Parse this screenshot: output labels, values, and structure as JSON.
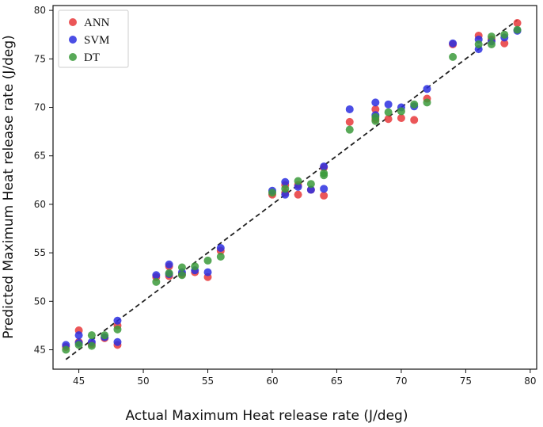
{
  "chart_data": {
    "type": "scatter",
    "xlabel": "Actual Maximum Heat release rate (J/deg)",
    "ylabel": "Predicted Maximum Heat release rate (J/deg)",
    "xlim": [
      43,
      80.5
    ],
    "ylim": [
      43,
      80.5
    ],
    "xticks": [
      45,
      50,
      55,
      60,
      65,
      70,
      75,
      80
    ],
    "yticks": [
      45,
      50,
      55,
      60,
      65,
      70,
      75,
      80
    ],
    "grid": false,
    "legend_position": "top-left",
    "reference_line": {
      "style": "dashed",
      "color": "#222222",
      "from": [
        44,
        44
      ],
      "to": [
        79,
        79
      ]
    },
    "series": [
      {
        "name": "ANN",
        "color": "#e8383b",
        "points": [
          [
            44,
            45.3
          ],
          [
            45,
            47.0
          ],
          [
            45,
            45.8
          ],
          [
            46,
            45.6
          ],
          [
            47,
            46.2
          ],
          [
            48,
            45.5
          ],
          [
            48,
            47.5
          ],
          [
            51,
            52.5
          ],
          [
            52,
            53.6
          ],
          [
            52,
            52.6
          ],
          [
            53,
            52.8
          ],
          [
            54,
            53.0
          ],
          [
            55,
            52.5
          ],
          [
            56,
            55.2
          ],
          [
            60,
            61.0
          ],
          [
            61,
            61.2
          ],
          [
            61,
            62.0
          ],
          [
            62,
            61.0
          ],
          [
            62,
            62.0
          ],
          [
            63,
            61.5
          ],
          [
            64,
            60.9
          ],
          [
            64,
            63.8
          ],
          [
            66,
            68.5
          ],
          [
            68,
            69.8
          ],
          [
            68,
            68.8
          ],
          [
            69,
            68.8
          ],
          [
            70,
            68.9
          ],
          [
            71,
            68.7
          ],
          [
            72,
            70.9
          ],
          [
            74,
            76.5
          ],
          [
            76,
            77.4
          ],
          [
            77,
            77.0
          ],
          [
            78,
            76.6
          ],
          [
            79,
            78.7
          ]
        ]
      },
      {
        "name": "SVM",
        "color": "#2c2fe0",
        "points": [
          [
            44,
            45.5
          ],
          [
            45,
            46.5
          ],
          [
            45,
            45.7
          ],
          [
            46,
            45.8
          ],
          [
            47,
            46.3
          ],
          [
            48,
            45.8
          ],
          [
            48,
            48.0
          ],
          [
            51,
            52.7
          ],
          [
            52,
            53.8
          ],
          [
            52,
            52.8
          ],
          [
            53,
            53.0
          ],
          [
            54,
            53.2
          ],
          [
            55,
            53.0
          ],
          [
            56,
            55.5
          ],
          [
            60,
            61.4
          ],
          [
            61,
            61.0
          ],
          [
            61,
            62.3
          ],
          [
            62,
            61.8
          ],
          [
            63,
            61.5
          ],
          [
            64,
            61.6
          ],
          [
            64,
            63.9
          ],
          [
            66,
            69.8
          ],
          [
            68,
            70.5
          ],
          [
            68,
            69.2
          ],
          [
            69,
            70.3
          ],
          [
            70,
            70.0
          ],
          [
            71,
            70.1
          ],
          [
            72,
            71.9
          ],
          [
            74,
            76.6
          ],
          [
            76,
            76.0
          ],
          [
            76,
            77.0
          ],
          [
            77,
            76.8
          ],
          [
            78,
            77.2
          ],
          [
            79,
            77.9
          ]
        ]
      },
      {
        "name": "DT",
        "color": "#3b9a3b",
        "points": [
          [
            44,
            45.0
          ],
          [
            45,
            45.5
          ],
          [
            46,
            45.4
          ],
          [
            46,
            46.5
          ],
          [
            47,
            46.5
          ],
          [
            48,
            47.1
          ],
          [
            51,
            52.0
          ],
          [
            52,
            52.9
          ],
          [
            53,
            53.5
          ],
          [
            53,
            52.7
          ],
          [
            54,
            53.6
          ],
          [
            55,
            54.2
          ],
          [
            56,
            54.6
          ],
          [
            60,
            61.2
          ],
          [
            61,
            61.6
          ],
          [
            62,
            62.4
          ],
          [
            63,
            62.1
          ],
          [
            64,
            63.2
          ],
          [
            64,
            63.0
          ],
          [
            66,
            67.7
          ],
          [
            68,
            69.0
          ],
          [
            68,
            68.6
          ],
          [
            69,
            69.5
          ],
          [
            70,
            69.6
          ],
          [
            71,
            70.3
          ],
          [
            72,
            70.5
          ],
          [
            74,
            75.2
          ],
          [
            76,
            76.5
          ],
          [
            77,
            76.5
          ],
          [
            77,
            77.3
          ],
          [
            78,
            77.5
          ],
          [
            79,
            78.0
          ]
        ]
      }
    ]
  }
}
